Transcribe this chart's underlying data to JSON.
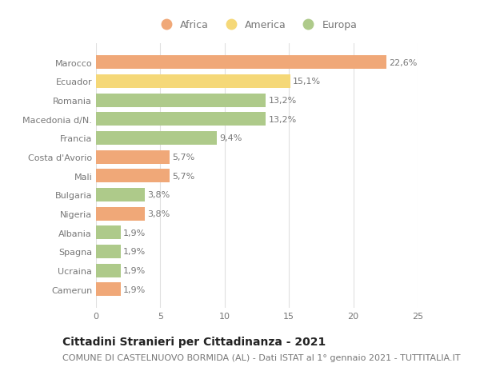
{
  "categories": [
    "Marocco",
    "Ecuador",
    "Romania",
    "Macedonia d/N.",
    "Francia",
    "Costa d'Avorio",
    "Mali",
    "Bulgaria",
    "Nigeria",
    "Albania",
    "Spagna",
    "Ucraina",
    "Camerun"
  ],
  "values": [
    22.6,
    15.1,
    13.2,
    13.2,
    9.4,
    5.7,
    5.7,
    3.8,
    3.8,
    1.9,
    1.9,
    1.9,
    1.9
  ],
  "labels": [
    "22,6%",
    "15,1%",
    "13,2%",
    "13,2%",
    "9,4%",
    "5,7%",
    "5,7%",
    "3,8%",
    "3,8%",
    "1,9%",
    "1,9%",
    "1,9%",
    "1,9%"
  ],
  "continents": [
    "Africa",
    "America",
    "Europa",
    "Europa",
    "Europa",
    "Africa",
    "Africa",
    "Europa",
    "Africa",
    "Europa",
    "Europa",
    "Europa",
    "Africa"
  ],
  "colors": {
    "Africa": "#F0A878",
    "America": "#F5D878",
    "Europa": "#AECA8A"
  },
  "legend_order": [
    "Africa",
    "America",
    "Europa"
  ],
  "xlim": [
    0,
    25
  ],
  "xticks": [
    0,
    5,
    10,
    15,
    20,
    25
  ],
  "title": "Cittadini Stranieri per Cittadinanza - 2021",
  "subtitle": "COMUNE DI CASTELNUOVO BORMIDA (AL) - Dati ISTAT al 1° gennaio 2021 - TUTTITALIA.IT",
  "background_color": "#ffffff",
  "bar_height": 0.72,
  "title_fontsize": 10,
  "subtitle_fontsize": 8,
  "label_fontsize": 8,
  "tick_fontsize": 8,
  "legend_fontsize": 9,
  "text_color": "#777777",
  "title_color": "#222222"
}
